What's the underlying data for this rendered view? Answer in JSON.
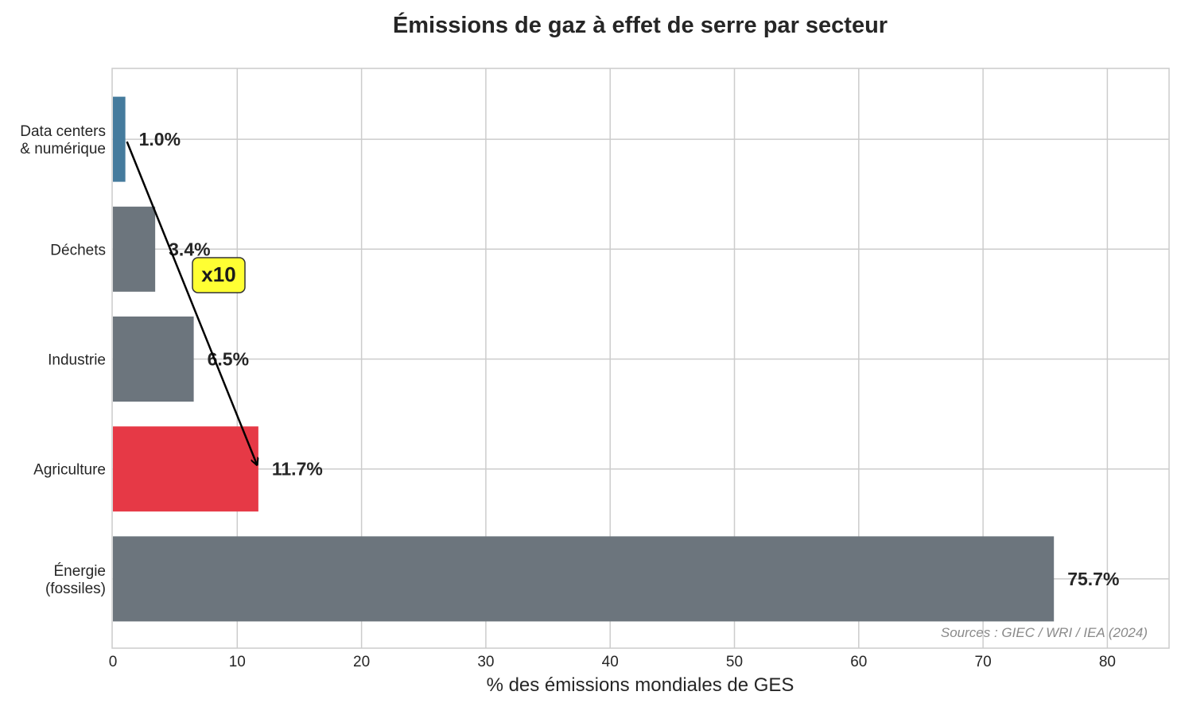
{
  "chart_data": {
    "type": "bar",
    "orientation": "horizontal",
    "title": "Émissions de gaz à effet de serre par secteur",
    "xlabel": "% des émissions mondiales de GES",
    "ylabel": "",
    "xlim": [
      0,
      85
    ],
    "xticks": [
      0,
      10,
      20,
      30,
      40,
      50,
      60,
      70,
      80
    ],
    "grid": true,
    "categories": [
      [
        "Data centers",
        "& numérique"
      ],
      [
        "Déchets"
      ],
      [
        "Industrie"
      ],
      [
        "Agriculture"
      ],
      [
        "Énergie",
        "(fossiles)"
      ]
    ],
    "values": [
      1.0,
      3.4,
      6.5,
      11.7,
      75.7
    ],
    "value_labels": [
      "1.0%",
      "3.4%",
      "6.5%",
      "11.7%",
      "75.7%"
    ],
    "colors": [
      "#457b9d",
      "#6c757d",
      "#6c757d",
      "#e63946",
      "#6c757d"
    ],
    "annotation": {
      "text": "x10",
      "from_category_index": 0,
      "to_category_index": 3,
      "box_color": "#ffff33"
    },
    "source": "Sources : GIEC / WRI / IEA (2024)"
  }
}
